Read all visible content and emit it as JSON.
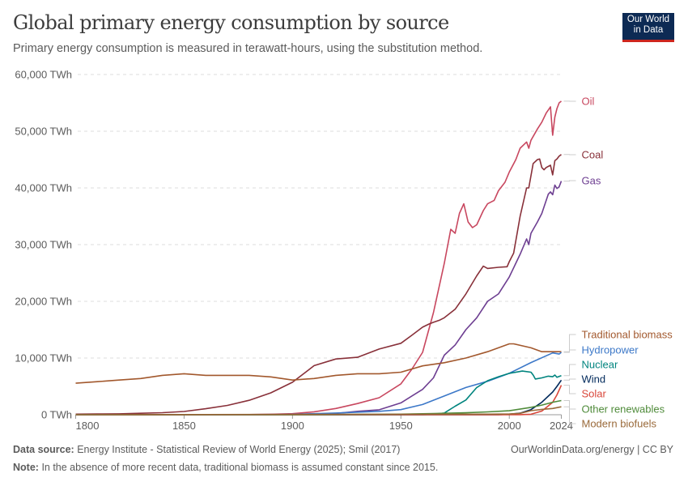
{
  "header": {
    "title": "Global primary energy consumption by source",
    "subtitle": "Primary energy consumption is measured in terawatt-hours, using the substitution method.",
    "logo": "Our World in Data"
  },
  "footer": {
    "source_label": "Data source:",
    "source_text": "Energy Institute - Statistical Review of World Energy (2025); Smil (2017)",
    "note_label": "Note:",
    "note_text": "In the absence of more recent data, traditional biomass is assumed constant since 2015.",
    "url": "OurWorldinData.org/energy | CC BY"
  },
  "chart_data": {
    "type": "line",
    "title": "Global primary energy consumption by source",
    "xlim": [
      1800,
      2024
    ],
    "ylim": [
      0,
      60000
    ],
    "x_ticks": [
      "1800",
      "1850",
      "1900",
      "1950",
      "2000",
      "2024"
    ],
    "y_ticks": [
      "0 TWh",
      "10,000 TWh",
      "20,000 TWh",
      "30,000 TWh",
      "40,000 TWh",
      "50,000 TWh",
      "60,000 TWh"
    ],
    "y_tick_values": [
      0,
      10000,
      20000,
      30000,
      40000,
      50000,
      60000
    ],
    "x_tick_values": [
      1800,
      1850,
      1900,
      1950,
      2000,
      2024
    ],
    "grid": "horizontal dashed",
    "legend": "right, labels at line ends",
    "series": [
      {
        "name": "Oil",
        "color": "#c8475f",
        "points": [
          [
            1800,
            0
          ],
          [
            1870,
            1
          ],
          [
            1880,
            33
          ],
          [
            1890,
            89
          ],
          [
            1900,
            181
          ],
          [
            1910,
            511
          ],
          [
            1920,
            1097
          ],
          [
            1930,
            1972
          ],
          [
            1940,
            3000
          ],
          [
            1950,
            5444
          ],
          [
            1955,
            8000
          ],
          [
            1960,
            11000
          ],
          [
            1965,
            18000
          ],
          [
            1970,
            26700
          ],
          [
            1973,
            32700
          ],
          [
            1975,
            32000
          ],
          [
            1977,
            35500
          ],
          [
            1979,
            37200
          ],
          [
            1981,
            34000
          ],
          [
            1983,
            33000
          ],
          [
            1985,
            33500
          ],
          [
            1988,
            36000
          ],
          [
            1990,
            37200
          ],
          [
            1993,
            37800
          ],
          [
            1995,
            39500
          ],
          [
            1998,
            41000
          ],
          [
            2000,
            42800
          ],
          [
            2003,
            45000
          ],
          [
            2005,
            47000
          ],
          [
            2008,
            48100
          ],
          [
            2009,
            47000
          ],
          [
            2010,
            48400
          ],
          [
            2013,
            50400
          ],
          [
            2015,
            51600
          ],
          [
            2017,
            53200
          ],
          [
            2019,
            54300
          ],
          [
            2020,
            49300
          ],
          [
            2021,
            52500
          ],
          [
            2022,
            54000
          ],
          [
            2023,
            55000
          ],
          [
            2024,
            55300
          ]
        ]
      },
      {
        "name": "Coal",
        "color": "#883039",
        "points": [
          [
            1800,
            97
          ],
          [
            1810,
            128
          ],
          [
            1820,
            153
          ],
          [
            1830,
            264
          ],
          [
            1840,
            356
          ],
          [
            1850,
            569
          ],
          [
            1860,
            1061
          ],
          [
            1870,
            1642
          ],
          [
            1880,
            2542
          ],
          [
            1890,
            3856
          ],
          [
            1900,
            5728
          ],
          [
            1910,
            8656
          ],
          [
            1920,
            9833
          ],
          [
            1930,
            10125
          ],
          [
            1940,
            11586
          ],
          [
            1950,
            12603
          ],
          [
            1955,
            14000
          ],
          [
            1960,
            15442
          ],
          [
            1963,
            16000
          ],
          [
            1965,
            16300
          ],
          [
            1968,
            16700
          ],
          [
            1970,
            17100
          ],
          [
            1975,
            18600
          ],
          [
            1980,
            21300
          ],
          [
            1985,
            24500
          ],
          [
            1988,
            26200
          ],
          [
            1990,
            25800
          ],
          [
            1995,
            26000
          ],
          [
            1999,
            26100
          ],
          [
            2000,
            27000
          ],
          [
            2002,
            28500
          ],
          [
            2005,
            35000
          ],
          [
            2008,
            40000
          ],
          [
            2009,
            40000
          ],
          [
            2011,
            44300
          ],
          [
            2013,
            45000
          ],
          [
            2014,
            45100
          ],
          [
            2015,
            43600
          ],
          [
            2016,
            43200
          ],
          [
            2017,
            43600
          ],
          [
            2019,
            44000
          ],
          [
            2020,
            42300
          ],
          [
            2021,
            44800
          ],
          [
            2022,
            45100
          ],
          [
            2023,
            45600
          ],
          [
            2024,
            45900
          ]
        ]
      },
      {
        "name": "Gas",
        "color": "#6d3e91",
        "points": [
          [
            1800,
            0
          ],
          [
            1880,
            30
          ],
          [
            1900,
            64
          ],
          [
            1910,
            161
          ],
          [
            1920,
            233
          ],
          [
            1930,
            603
          ],
          [
            1940,
            875
          ],
          [
            1950,
            2092
          ],
          [
            1960,
            4472
          ],
          [
            1965,
            6500
          ],
          [
            1970,
            10500
          ],
          [
            1975,
            12300
          ],
          [
            1980,
            15000
          ],
          [
            1985,
            17100
          ],
          [
            1990,
            20000
          ],
          [
            1995,
            21300
          ],
          [
            2000,
            24300
          ],
          [
            2005,
            28300
          ],
          [
            2008,
            31000
          ],
          [
            2009,
            30000
          ],
          [
            2010,
            32000
          ],
          [
            2013,
            34000
          ],
          [
            2015,
            35500
          ],
          [
            2018,
            38900
          ],
          [
            2019,
            39300
          ],
          [
            2020,
            38800
          ],
          [
            2021,
            40500
          ],
          [
            2022,
            39900
          ],
          [
            2023,
            40200
          ],
          [
            2024,
            41200
          ]
        ]
      },
      {
        "name": "Traditional biomass",
        "color": "#a2582d",
        "points": [
          [
            1800,
            5556
          ],
          [
            1810,
            5833
          ],
          [
            1820,
            6111
          ],
          [
            1830,
            6389
          ],
          [
            1840,
            6944
          ],
          [
            1850,
            7222
          ],
          [
            1860,
            6944
          ],
          [
            1870,
            6944
          ],
          [
            1880,
            6944
          ],
          [
            1890,
            6667
          ],
          [
            1900,
            6111
          ],
          [
            1910,
            6389
          ],
          [
            1920,
            6944
          ],
          [
            1930,
            7222
          ],
          [
            1940,
            7222
          ],
          [
            1950,
            7500
          ],
          [
            1960,
            8611
          ],
          [
            1970,
            9167
          ],
          [
            1980,
            10000
          ],
          [
            1990,
            11111
          ],
          [
            2000,
            12500
          ],
          [
            2002,
            12500
          ],
          [
            2010,
            11800
          ],
          [
            2015,
            11111
          ],
          [
            2024,
            11111
          ]
        ]
      },
      {
        "name": "Hydropower",
        "color": "#3c78c8",
        "points": [
          [
            1800,
            0
          ],
          [
            1890,
            10
          ],
          [
            1900,
            50
          ],
          [
            1920,
            300
          ],
          [
            1940,
            600
          ],
          [
            1950,
            900
          ],
          [
            1960,
            1800
          ],
          [
            1970,
            3300
          ],
          [
            1980,
            4800
          ],
          [
            1990,
            5900
          ],
          [
            2000,
            7300
          ],
          [
            2010,
            9200
          ],
          [
            2020,
            10900
          ],
          [
            2023,
            10700
          ],
          [
            2024,
            11000
          ]
        ]
      },
      {
        "name": "Nuclear",
        "color": "#00847e",
        "points": [
          [
            1800,
            0
          ],
          [
            1960,
            0
          ],
          [
            1965,
            100
          ],
          [
            1970,
            300
          ],
          [
            1975,
            1500
          ],
          [
            1980,
            2600
          ],
          [
            1985,
            4800
          ],
          [
            1990,
            6000
          ],
          [
            1995,
            6700
          ],
          [
            2000,
            7300
          ],
          [
            2006,
            7700
          ],
          [
            2010,
            7500
          ],
          [
            2011,
            7000
          ],
          [
            2012,
            6300
          ],
          [
            2015,
            6500
          ],
          [
            2018,
            6800
          ],
          [
            2020,
            6700
          ],
          [
            2021,
            7000
          ],
          [
            2022,
            6600
          ],
          [
            2024,
            6900
          ]
        ]
      },
      {
        "name": "Wind",
        "color": "#00295b",
        "points": [
          [
            1800,
            0
          ],
          [
            1995,
            10
          ],
          [
            2000,
            80
          ],
          [
            2005,
            270
          ],
          [
            2010,
            900
          ],
          [
            2015,
            2200
          ],
          [
            2020,
            4000
          ],
          [
            2022,
            5000
          ],
          [
            2024,
            6100
          ]
        ]
      },
      {
        "name": "Solar",
        "color": "#d9473a",
        "points": [
          [
            1800,
            0
          ],
          [
            2005,
            10
          ],
          [
            2010,
            90
          ],
          [
            2015,
            640
          ],
          [
            2018,
            1550
          ],
          [
            2020,
            2200
          ],
          [
            2022,
            3500
          ],
          [
            2024,
            5200
          ]
        ]
      },
      {
        "name": "Other renewables",
        "color": "#4f8b3a",
        "points": [
          [
            1800,
            0
          ],
          [
            1900,
            0
          ],
          [
            1950,
            100
          ],
          [
            1965,
            200
          ],
          [
            1980,
            350
          ],
          [
            1990,
            500
          ],
          [
            2000,
            700
          ],
          [
            2010,
            1300
          ],
          [
            2015,
            1700
          ],
          [
            2020,
            2200
          ],
          [
            2024,
            2500
          ]
        ]
      },
      {
        "name": "Modern biofuels",
        "color": "#9a6a3a",
        "points": [
          [
            1800,
            0
          ],
          [
            1990,
            100
          ],
          [
            2000,
            130
          ],
          [
            2005,
            250
          ],
          [
            2010,
            720
          ],
          [
            2015,
            950
          ],
          [
            2020,
            1100
          ],
          [
            2024,
            1400
          ]
        ]
      }
    ]
  }
}
